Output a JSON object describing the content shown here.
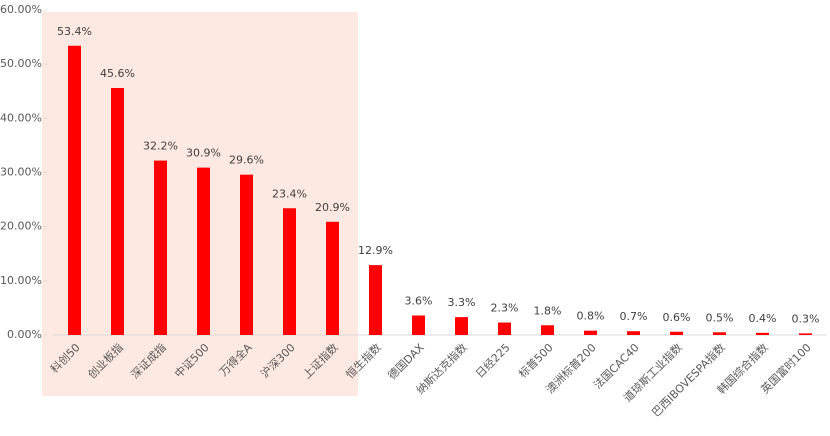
{
  "chart_data": {
    "type": "bar",
    "categories": [
      "科创50",
      "创业板指",
      "深证成指",
      "中证500",
      "万得全A",
      "沪深300",
      "上证指数",
      "恒生指数",
      "德国DAX",
      "纳斯达克指数",
      "日经225",
      "标普500",
      "澳洲标普200",
      "法国CAC40",
      "道琼斯工业指数",
      "巴西IBOVESPA指数",
      "韩国综合指数",
      "英国富时100"
    ],
    "values": [
      53.4,
      45.6,
      32.2,
      30.9,
      29.6,
      23.4,
      20.9,
      12.9,
      3.6,
      3.3,
      2.3,
      1.8,
      0.8,
      0.7,
      0.6,
      0.5,
      0.4,
      0.3
    ],
    "value_labels": [
      "53.4%",
      "45.6%",
      "32.2%",
      "30.9%",
      "29.6%",
      "23.4%",
      "20.9%",
      "12.9%",
      "3.6%",
      "3.3%",
      "2.3%",
      "1.8%",
      "0.8%",
      "0.7%",
      "0.6%",
      "0.5%",
      "0.4%",
      "0.3%"
    ],
    "color": "#ff0000",
    "ylim": [
      0,
      60
    ],
    "yticks": [
      {
        "value": 0,
        "label": "0.00%"
      },
      {
        "value": 10,
        "label": "10.00%"
      },
      {
        "value": 20,
        "label": "20.00%"
      },
      {
        "value": 30,
        "label": "30.00%"
      },
      {
        "value": 40,
        "label": "40.00%"
      },
      {
        "value": 50,
        "label": "50.00%"
      },
      {
        "value": 60,
        "label": "60.00%"
      }
    ],
    "grid": false
  }
}
